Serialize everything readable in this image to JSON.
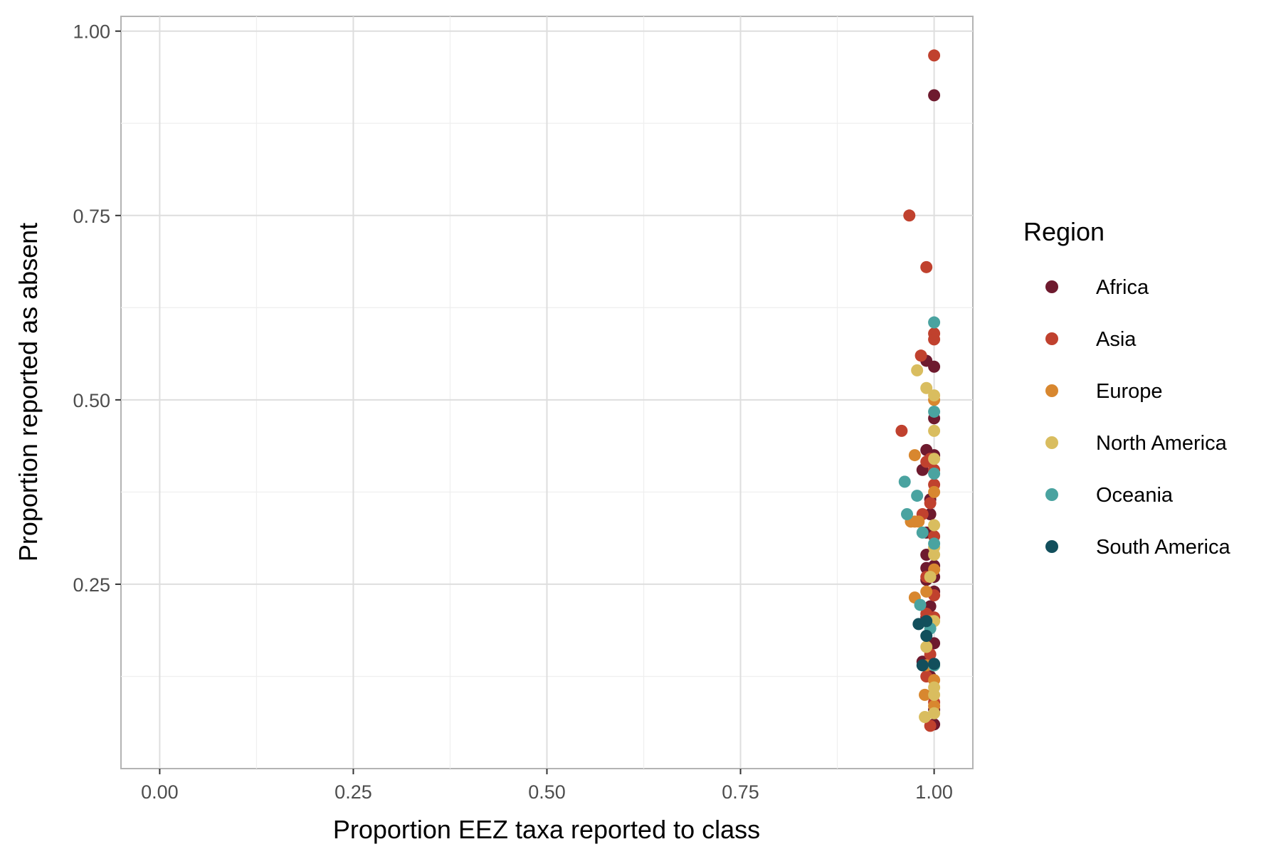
{
  "chart_data": {
    "type": "scatter",
    "xlabel": "Proportion EEZ taxa reported to class",
    "ylabel": "Proportion reported as absent",
    "xlim": [
      -0.05,
      1.05
    ],
    "ylim": [
      0.0,
      1.02
    ],
    "x_ticks": [
      "0.00",
      "0.25",
      "0.50",
      "0.75",
      "1.00"
    ],
    "y_ticks": [
      "0.25",
      "0.50",
      "0.75",
      "1.00"
    ],
    "grid": true,
    "legend": {
      "title": "Region",
      "position": "right"
    },
    "series": [
      {
        "name": "Africa",
        "color": "#6e1a2e",
        "points": [
          [
            1.0,
            0.913
          ],
          [
            0.99,
            0.553
          ],
          [
            1.0,
            0.545
          ],
          [
            1.0,
            0.475
          ],
          [
            0.99,
            0.432
          ],
          [
            1.0,
            0.425
          ],
          [
            0.985,
            0.405
          ],
          [
            0.995,
            0.365
          ],
          [
            0.995,
            0.345
          ],
          [
            0.99,
            0.32
          ],
          [
            0.99,
            0.29
          ],
          [
            1.0,
            0.275
          ],
          [
            0.99,
            0.272
          ],
          [
            1.0,
            0.26
          ],
          [
            0.99,
            0.256
          ],
          [
            1.0,
            0.24
          ],
          [
            0.995,
            0.22
          ],
          [
            0.99,
            0.205
          ],
          [
            1.0,
            0.17
          ],
          [
            0.985,
            0.145
          ],
          [
            0.995,
            0.125
          ],
          [
            1.0,
            0.08
          ],
          [
            1.0,
            0.06
          ]
        ]
      },
      {
        "name": "Asia",
        "color": "#c0412e",
        "points": [
          [
            1.0,
            0.967
          ],
          [
            0.968,
            0.75
          ],
          [
            0.99,
            0.68
          ],
          [
            1.0,
            0.59
          ],
          [
            1.0,
            0.582
          ],
          [
            0.983,
            0.56
          ],
          [
            0.958,
            0.458
          ],
          [
            0.995,
            0.42
          ],
          [
            0.99,
            0.416
          ],
          [
            1.0,
            0.405
          ],
          [
            1.0,
            0.385
          ],
          [
            0.995,
            0.36
          ],
          [
            0.985,
            0.345
          ],
          [
            1.0,
            0.315
          ],
          [
            0.99,
            0.26
          ],
          [
            1.0,
            0.235
          ],
          [
            0.99,
            0.21
          ],
          [
            1.0,
            0.205
          ],
          [
            0.995,
            0.155
          ],
          [
            0.99,
            0.125
          ],
          [
            1.0,
            0.09
          ],
          [
            0.995,
            0.058
          ]
        ]
      },
      {
        "name": "Europe",
        "color": "#d8872f",
        "points": [
          [
            1.0,
            0.5
          ],
          [
            0.975,
            0.425
          ],
          [
            1.0,
            0.375
          ],
          [
            0.98,
            0.335
          ],
          [
            0.97,
            0.335
          ],
          [
            0.975,
            0.335
          ],
          [
            1.0,
            0.27
          ],
          [
            0.975,
            0.232
          ],
          [
            0.99,
            0.24
          ],
          [
            0.995,
            0.2
          ],
          [
            0.99,
            0.14
          ],
          [
            1.0,
            0.12
          ],
          [
            0.988,
            0.1
          ],
          [
            1.0,
            0.085
          ]
        ]
      },
      {
        "name": "North America",
        "color": "#d9bd5f",
        "points": [
          [
            0.978,
            0.54
          ],
          [
            0.99,
            0.516
          ],
          [
            1.0,
            0.506
          ],
          [
            1.0,
            0.458
          ],
          [
            1.0,
            0.42
          ],
          [
            1.0,
            0.33
          ],
          [
            1.0,
            0.3
          ],
          [
            1.0,
            0.29
          ],
          [
            0.995,
            0.26
          ],
          [
            1.0,
            0.2
          ],
          [
            0.99,
            0.165
          ],
          [
            1.0,
            0.14
          ],
          [
            1.0,
            0.11
          ],
          [
            1.0,
            0.1
          ],
          [
            0.988,
            0.07
          ],
          [
            1.0,
            0.075
          ]
        ]
      },
      {
        "name": "Oceania",
        "color": "#4aa3a0",
        "points": [
          [
            1.0,
            0.605
          ],
          [
            1.0,
            0.484
          ],
          [
            1.0,
            0.4
          ],
          [
            0.962,
            0.389
          ],
          [
            0.978,
            0.37
          ],
          [
            0.965,
            0.345
          ],
          [
            0.985,
            0.32
          ],
          [
            1.0,
            0.305
          ],
          [
            0.982,
            0.222
          ],
          [
            0.995,
            0.19
          ],
          [
            1.0,
            0.14
          ]
        ]
      },
      {
        "name": "South America",
        "color": "#124f5c",
        "points": [
          [
            0.98,
            0.196
          ],
          [
            0.99,
            0.2
          ],
          [
            0.99,
            0.18
          ],
          [
            0.985,
            0.14
          ],
          [
            1.0,
            0.142
          ]
        ]
      }
    ]
  }
}
